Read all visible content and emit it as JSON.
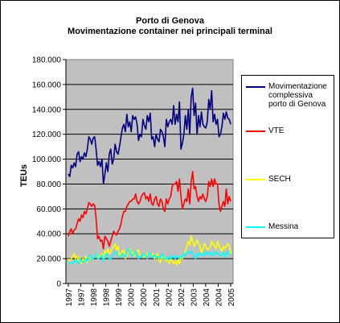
{
  "chart_data": {
    "type": "line",
    "title": "Porto di Genova",
    "subtitle": "Movimentazione container nei principali terminal",
    "ylabel": "TEUs",
    "xlabel": "",
    "ylim": [
      0,
      180000
    ],
    "yticks": [
      "0",
      "20.000",
      "40.000",
      "60.000",
      "80.000",
      "100.000",
      "120.000",
      "140.000",
      "160.000",
      "180.000"
    ],
    "xticks": [
      "1997",
      "1997",
      "1998",
      "1998",
      "1999",
      "2000",
      "2000",
      "2001",
      "2002",
      "2002",
      "2003",
      "2004",
      "2004",
      "2005"
    ],
    "grid": "horizontal",
    "legend_position": "right",
    "series": [
      {
        "name": "Movimentazione complessiva porto di Genova",
        "color": "#000080",
        "values": [
          88000,
          86000,
          95000,
          93000,
          97000,
          94000,
          104000,
          106000,
          98000,
          102000,
          100000,
          105000,
          102000,
          108000,
          118000,
          116000,
          112000,
          117000,
          118000,
          108000,
          95000,
          98000,
          94000,
          100000,
          80000,
          88000,
          97000,
          90000,
          104000,
          108000,
          96000,
          100000,
          112000,
          106000,
          104000,
          110000,
          118000,
          125000,
          128000,
          122000,
          136000,
          126000,
          130000,
          122000,
          135000,
          132000,
          134000,
          128000,
          115000,
          120000,
          118000,
          132000,
          127000,
          124000,
          135000,
          130000,
          137000,
          116000,
          118000,
          110000,
          120000,
          116000,
          114000,
          124000,
          122000,
          118000,
          110000,
          132000,
          126000,
          130000,
          132000,
          128000,
          143000,
          128000,
          136000,
          130000,
          146000,
          108000,
          113000,
          120000,
          135000,
          124000,
          140000,
          120000,
          150000,
          157000,
          135000,
          145000,
          120000,
          135000,
          126000,
          138000,
          128000,
          126000,
          125000,
          130000,
          148000,
          140000,
          155000,
          130000,
          136000,
          128000,
          132000,
          118000,
          120000,
          126000,
          137000,
          132000,
          138000,
          133000,
          132000,
          128000
        ]
      },
      {
        "name": "VTE",
        "color": "#ff0000",
        "values": [
          38000,
          42000,
          44000,
          40000,
          43000,
          44000,
          48000,
          52000,
          50000,
          55000,
          53000,
          58000,
          56000,
          60000,
          65000,
          64000,
          62000,
          64000,
          63000,
          52000,
          36000,
          38000,
          34000,
          35000,
          28000,
          38000,
          36000,
          34000,
          30000,
          34000,
          38000,
          42000,
          40000,
          39000,
          42000,
          44000,
          48000,
          54000,
          58000,
          58000,
          62000,
          64000,
          66000,
          66000,
          68000,
          68000,
          72000,
          66000,
          64000,
          66000,
          70000,
          72000,
          73000,
          68000,
          70000,
          66000,
          72000,
          64000,
          63000,
          68000,
          70000,
          64000,
          62000,
          68000,
          66000,
          60000,
          58000,
          68000,
          64000,
          68000,
          70000,
          78000,
          80000,
          80000,
          82000,
          74000,
          84000,
          70000,
          60000,
          64000,
          68000,
          66000,
          76000,
          64000,
          82000,
          90000,
          76000,
          78000,
          70000,
          66000,
          70000,
          68000,
          72000,
          68000,
          66000,
          70000,
          82000,
          78000,
          84000,
          78000,
          84000,
          80000,
          80000,
          64000,
          58000,
          62000,
          66000,
          62000,
          76000,
          64000,
          70000,
          66000
        ]
      },
      {
        "name": "SECH",
        "color": "#ffff00",
        "values": [
          20000,
          18000,
          20000,
          22000,
          24000,
          20000,
          22000,
          18000,
          21000,
          16000,
          20000,
          18000,
          22000,
          17000,
          21000,
          20000,
          19000,
          20000,
          22000,
          24000,
          22000,
          20000,
          23000,
          24000,
          20000,
          26000,
          25000,
          28000,
          24000,
          26000,
          28000,
          30000,
          32000,
          27000,
          30000,
          22000,
          24000,
          26000,
          27000,
          20000,
          23000,
          27000,
          28000,
          24000,
          25000,
          22000,
          24000,
          26000,
          27000,
          22000,
          21000,
          24000,
          21000,
          22000,
          24000,
          25000,
          23000,
          22000,
          24000,
          20000,
          22000,
          24000,
          18000,
          17000,
          22000,
          20000,
          21000,
          18000,
          20000,
          16000,
          20000,
          18000,
          16000,
          18000,
          15000,
          19000,
          16000,
          22000,
          20000,
          24000,
          25000,
          30000,
          34000,
          31000,
          38000,
          34000,
          30000,
          32000,
          35000,
          32000,
          30000,
          24000,
          28000,
          32000,
          30000,
          27000,
          28000,
          29000,
          34000,
          32000,
          30000,
          28000,
          34000,
          30000,
          28000,
          26000,
          30000,
          28000,
          30000,
          32000,
          30000,
          24000
        ]
      },
      {
        "name": "Messina",
        "color": "#00ffff",
        "values": [
          16000,
          17000,
          17000,
          16000,
          18000,
          19000,
          17000,
          16000,
          20000,
          18000,
          17000,
          18000,
          20000,
          18000,
          22000,
          23000,
          19000,
          20000,
          22000,
          24000,
          20000,
          20000,
          22000,
          23000,
          18000,
          22000,
          24000,
          23000,
          20000,
          19000,
          22000,
          24000,
          25000,
          26000,
          23000,
          21000,
          22000,
          24000,
          23000,
          21000,
          25000,
          28000,
          27000,
          23000,
          22000,
          24000,
          26000,
          22000,
          20000,
          22000,
          21000,
          24000,
          23000,
          22000,
          20000,
          25000,
          24000,
          21000,
          22000,
          23000,
          20000,
          22000,
          21000,
          20000,
          24000,
          22000,
          20000,
          21000,
          19000,
          22000,
          20000,
          21000,
          23000,
          20000,
          22000,
          21000,
          20000,
          22000,
          21000,
          24000,
          22000,
          26000,
          25000,
          24000,
          26000,
          24000,
          22000,
          20000,
          24000,
          22000,
          25000,
          23000,
          24000,
          22000,
          26000,
          24000,
          23000,
          25000,
          24000,
          22000,
          26000,
          24000,
          25000,
          23000,
          22000,
          24000,
          25000,
          21000,
          24000,
          26000,
          24000,
          22000
        ]
      }
    ]
  }
}
